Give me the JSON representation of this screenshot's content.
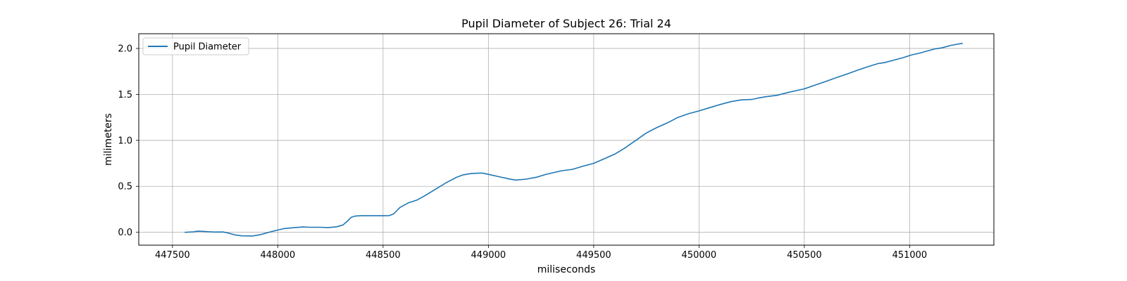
{
  "chart_data": {
    "type": "line",
    "title": "Pupil Diameter of Subject 26: Trial 24",
    "xlabel": "miliseconds",
    "ylabel": "milimeters",
    "xlim": [
      447340,
      451400
    ],
    "ylim": [
      -0.14,
      2.16
    ],
    "xticks": [
      447500,
      448000,
      448500,
      449000,
      449500,
      450000,
      450500,
      451000
    ],
    "yticks": [
      0.0,
      0.5,
      1.0,
      1.5,
      2.0
    ],
    "xtick_labels": [
      "447500",
      "448000",
      "448500",
      "449000",
      "449500",
      "450000",
      "450500",
      "451000"
    ],
    "ytick_labels": [
      "0.0",
      "0.5",
      "1.0",
      "1.5",
      "2.0"
    ],
    "grid": true,
    "legend_position": "upper-left",
    "colors": {
      "series": "#1f77b4",
      "grid": "#b0b0b0",
      "frame": "#000000"
    },
    "series": [
      {
        "name": "Pupil Diameter",
        "x": [
          447560,
          447600,
          447620,
          447650,
          447680,
          447700,
          447740,
          447760,
          447800,
          447830,
          447880,
          447920,
          447950,
          447990,
          448030,
          448080,
          448120,
          448150,
          448200,
          448240,
          448280,
          448310,
          448330,
          448350,
          448370,
          448400,
          448450,
          448500,
          448530,
          448550,
          448580,
          448620,
          448660,
          448700,
          448750,
          448800,
          448850,
          448880,
          448920,
          448970,
          449000,
          449050,
          449100,
          449130,
          449180,
          449230,
          449270,
          449310,
          449350,
          449400,
          449450,
          449500,
          449550,
          449600,
          449650,
          449700,
          449750,
          449800,
          449850,
          449900,
          449950,
          450000,
          450050,
          450100,
          450150,
          450200,
          450250,
          450280,
          450320,
          450370,
          450420,
          450460,
          450500,
          450550,
          450600,
          450650,
          450700,
          450750,
          450800,
          450850,
          450880,
          450920,
          450970,
          451010,
          451050,
          451080,
          451120,
          451150,
          451200,
          451250
        ],
        "y": [
          0.0,
          0.005,
          0.012,
          0.01,
          0.005,
          0.003,
          0.004,
          -0.005,
          -0.03,
          -0.038,
          -0.04,
          -0.025,
          -0.005,
          0.02,
          0.04,
          0.052,
          0.058,
          0.055,
          0.055,
          0.052,
          0.06,
          0.08,
          0.12,
          0.165,
          0.178,
          0.18,
          0.18,
          0.18,
          0.182,
          0.2,
          0.27,
          0.32,
          0.35,
          0.4,
          0.47,
          0.54,
          0.6,
          0.625,
          0.64,
          0.645,
          0.63,
          0.605,
          0.58,
          0.568,
          0.578,
          0.6,
          0.628,
          0.65,
          0.67,
          0.685,
          0.72,
          0.75,
          0.8,
          0.85,
          0.92,
          1.0,
          1.08,
          1.14,
          1.19,
          1.25,
          1.29,
          1.32,
          1.355,
          1.39,
          1.42,
          1.44,
          1.445,
          1.46,
          1.475,
          1.49,
          1.52,
          1.54,
          1.56,
          1.6,
          1.64,
          1.68,
          1.72,
          1.76,
          1.8,
          1.835,
          1.845,
          1.87,
          1.9,
          1.93,
          1.95,
          1.97,
          1.995,
          2.005,
          2.035,
          2.055
        ]
      }
    ]
  }
}
